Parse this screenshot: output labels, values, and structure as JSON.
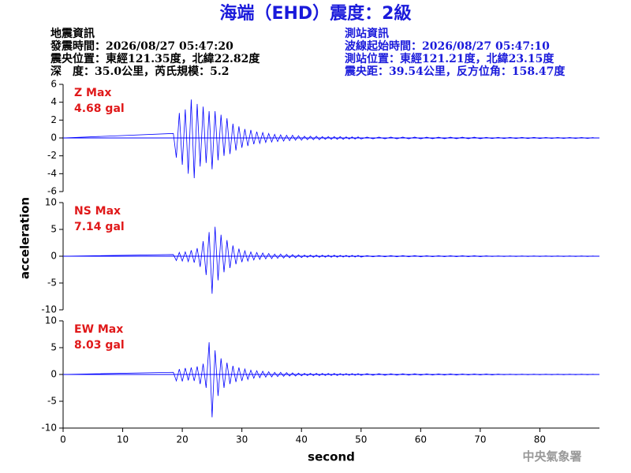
{
  "header": {
    "title": "海端（EHD）震度：2級",
    "left": [
      "地震資訊",
      "發震時間：2026/08/27 05:47:20",
      "震央位置：東經121.35度，北緯22.82度",
      "深　度：35.0公里，芮氏規模：5.2"
    ],
    "right": [
      "測站資訊",
      "波線起始時間：2026/08/27 05:47:10",
      "測站位置：東經121.21度，北緯23.15度",
      "震央距：39.54公里，反方位角：158.47度"
    ]
  },
  "axes": {
    "x_label": "second",
    "y_label": "acceleration"
  },
  "footer": "中央氣象署",
  "chart_data": [
    {
      "type": "line",
      "annotation": "Z Max",
      "max_label": "4.68 gal",
      "color": "#0000ff",
      "x": [
        0,
        18.5,
        19,
        19.5,
        20,
        20.5,
        21,
        21.5,
        22,
        22.5,
        23,
        23.5,
        24,
        24.5,
        25,
        25.5,
        26,
        26.5,
        27,
        27.5,
        28,
        28.5,
        29,
        29.5,
        30,
        30.5,
        31,
        31.5,
        32,
        32.5,
        33,
        33.5,
        34,
        34.5,
        35,
        35.5,
        36,
        36.5,
        37,
        37.5,
        38,
        38.5,
        39,
        39.5,
        40,
        40.5,
        41,
        41.5,
        42,
        42.5,
        43,
        43.5,
        44,
        44.5,
        45,
        45.5,
        46,
        46.5,
        47,
        47.5,
        48,
        48.5,
        49,
        49.5,
        50,
        51,
        52,
        53,
        54,
        55,
        56,
        57,
        58,
        59,
        60,
        61,
        62,
        63,
        64,
        65,
        66,
        67,
        68,
        69,
        70,
        71,
        72,
        73,
        74,
        75,
        76,
        77,
        78,
        79,
        80,
        81,
        82,
        83,
        84,
        85,
        86,
        87,
        88,
        89
      ],
      "values": [
        0,
        0.5,
        -2.2,
        2.8,
        -3.0,
        3.2,
        -4.0,
        4.3,
        -4.5,
        3.8,
        -3.2,
        3.5,
        -2.8,
        3.0,
        -3.5,
        3.0,
        -2.5,
        2.6,
        -2.0,
        2.2,
        -1.8,
        1.6,
        -1.4,
        1.3,
        -1.1,
        1.0,
        -0.9,
        0.9,
        -0.7,
        0.7,
        -0.6,
        0.6,
        -0.5,
        0.5,
        -0.45,
        0.4,
        -0.4,
        0.35,
        -0.35,
        0.3,
        -0.3,
        0.3,
        -0.25,
        0.25,
        -0.25,
        0.2,
        -0.2,
        0.2,
        -0.2,
        0.2,
        -0.2,
        0.15,
        -0.15,
        0.15,
        -0.15,
        0.15,
        -0.15,
        0.15,
        -0.15,
        0.12,
        -0.12,
        0.12,
        -0.12,
        0.12,
        -0.12,
        0.1,
        -0.1,
        0.1,
        -0.1,
        0.1,
        -0.1,
        0.1,
        -0.1,
        0.1,
        -0.1,
        0.08,
        -0.08,
        0.08,
        -0.08,
        0.08,
        -0.08,
        0.08,
        -0.08,
        0.08,
        -0.08,
        0.06,
        -0.06,
        0.06,
        -0.06,
        0.06,
        -0.06,
        0.06,
        -0.06,
        0.06,
        -0.06,
        0.05,
        -0.05,
        0.05,
        -0.05,
        0.05,
        -0.05,
        0.05,
        -0.05,
        0.05
      ],
      "xlim": [
        0,
        90
      ],
      "ylim": [
        -6,
        6
      ],
      "yticks": [
        -6,
        -4,
        -2,
        0,
        2,
        4,
        6
      ]
    },
    {
      "type": "line",
      "annotation": "NS Max",
      "max_label": "7.14 gal",
      "color": "#0000ff",
      "x": [
        0,
        18.5,
        19,
        19.5,
        20,
        20.5,
        21,
        21.5,
        22,
        22.5,
        23,
        23.5,
        24,
        24.5,
        25,
        25.5,
        26,
        26.5,
        27,
        27.5,
        28,
        28.5,
        29,
        29.5,
        30,
        30.5,
        31,
        31.5,
        32,
        32.5,
        33,
        33.5,
        34,
        34.5,
        35,
        35.5,
        36,
        36.5,
        37,
        37.5,
        38,
        38.5,
        39,
        39.5,
        40,
        40.5,
        41,
        41.5,
        42,
        42.5,
        43,
        43.5,
        44,
        44.5,
        45,
        45.5,
        46,
        46.5,
        47,
        47.5,
        48,
        48.5,
        49,
        49.5,
        50,
        51,
        52,
        53,
        54,
        55,
        56,
        57,
        58,
        59,
        60,
        61,
        62,
        63,
        64,
        65,
        66,
        67,
        68,
        69,
        70,
        71,
        72,
        73,
        74,
        75,
        76,
        77,
        78,
        79,
        80,
        81,
        82,
        83,
        84,
        85,
        86,
        87,
        88,
        89
      ],
      "values": [
        0,
        0.3,
        -0.8,
        0.7,
        -0.9,
        0.8,
        -1.0,
        1.1,
        -1.2,
        1.5,
        -2.0,
        2.8,
        -3.5,
        4.5,
        -7.0,
        5.5,
        -4.5,
        4.0,
        -3.0,
        3.0,
        -2.2,
        2.0,
        -1.5,
        1.4,
        -1.1,
        1.0,
        -0.9,
        0.8,
        -0.7,
        0.7,
        -0.6,
        0.6,
        -0.5,
        0.5,
        -0.45,
        0.4,
        -0.4,
        0.4,
        -0.35,
        0.35,
        -0.3,
        0.3,
        -0.3,
        0.25,
        -0.25,
        0.2,
        -0.2,
        0.2,
        -0.2,
        0.2,
        -0.2,
        0.18,
        -0.18,
        0.18,
        -0.18,
        0.18,
        -0.18,
        0.15,
        -0.15,
        0.15,
        -0.15,
        0.15,
        -0.15,
        0.15,
        -0.15,
        0.1,
        -0.1,
        0.1,
        -0.1,
        0.1,
        -0.1,
        0.1,
        -0.1,
        0.1,
        -0.1,
        0.08,
        -0.08,
        0.08,
        -0.08,
        0.08,
        -0.08,
        0.08,
        -0.08,
        0.08,
        -0.08,
        0.06,
        -0.06,
        0.06,
        -0.06,
        0.06,
        -0.06,
        0.06,
        -0.06,
        0.06,
        -0.06,
        0.05,
        -0.05,
        0.05,
        -0.05,
        0.05,
        -0.05,
        0.05,
        -0.05,
        0.05
      ],
      "xlim": [
        0,
        90
      ],
      "ylim": [
        -10,
        10
      ],
      "yticks": [
        -10,
        -5,
        0,
        5,
        10
      ]
    },
    {
      "type": "line",
      "annotation": "EW Max",
      "max_label": "8.03 gal",
      "color": "#0000ff",
      "x": [
        0,
        18.5,
        19,
        19.5,
        20,
        20.5,
        21,
        21.5,
        22,
        22.5,
        23,
        23.5,
        24,
        24.5,
        25,
        25.5,
        26,
        26.5,
        27,
        27.5,
        28,
        28.5,
        29,
        29.5,
        30,
        30.5,
        31,
        31.5,
        32,
        32.5,
        33,
        33.5,
        34,
        34.5,
        35,
        35.5,
        36,
        36.5,
        37,
        37.5,
        38,
        38.5,
        39,
        39.5,
        40,
        40.5,
        41,
        41.5,
        42,
        42.5,
        43,
        43.5,
        44,
        44.5,
        45,
        45.5,
        46,
        46.5,
        47,
        47.5,
        48,
        48.5,
        49,
        49.5,
        50,
        51,
        52,
        53,
        54,
        55,
        56,
        57,
        58,
        59,
        60,
        61,
        62,
        63,
        64,
        65,
        66,
        67,
        68,
        69,
        70,
        71,
        72,
        73,
        74,
        75,
        76,
        77,
        78,
        79,
        80,
        81,
        82,
        83,
        84,
        85,
        86,
        87,
        88,
        89
      ],
      "values": [
        0,
        0.4,
        -1.2,
        1.0,
        -1.3,
        1.2,
        -1.1,
        1.3,
        -1.2,
        1.5,
        -1.8,
        2.0,
        -2.5,
        6.0,
        -8.0,
        4.5,
        -4.0,
        3.0,
        -2.5,
        2.2,
        -1.8,
        1.6,
        -1.4,
        1.3,
        -1.2,
        1.0,
        -0.9,
        0.8,
        -0.7,
        0.7,
        -0.6,
        0.6,
        -0.5,
        0.5,
        -0.45,
        0.4,
        -0.4,
        0.4,
        -0.35,
        0.35,
        -0.3,
        0.3,
        -0.3,
        0.25,
        -0.25,
        0.2,
        -0.2,
        0.2,
        -0.2,
        0.2,
        -0.2,
        0.18,
        -0.18,
        0.18,
        -0.18,
        0.18,
        -0.18,
        0.15,
        -0.15,
        0.15,
        -0.15,
        0.15,
        -0.15,
        0.15,
        -0.15,
        0.15,
        -0.15,
        0.15,
        -0.15,
        0.12,
        -0.12,
        0.12,
        -0.12,
        0.12,
        -0.12,
        0.1,
        -0.1,
        0.1,
        -0.1,
        0.1,
        -0.1,
        0.08,
        -0.08,
        0.08,
        -0.08,
        0.08,
        -0.08,
        0.06,
        -0.06,
        0.06,
        -0.06,
        0.06,
        -0.06,
        0.06,
        -0.06,
        0.05,
        -0.05,
        0.05,
        -0.05,
        0.05,
        -0.05,
        0.05,
        -0.05,
        0.05
      ],
      "xlim": [
        0,
        90
      ],
      "ylim": [
        -10,
        10
      ],
      "yticks": [
        -10,
        -5,
        0,
        5,
        10
      ],
      "xticks": [
        0,
        10,
        20,
        30,
        40,
        50,
        60,
        70,
        80
      ]
    }
  ]
}
